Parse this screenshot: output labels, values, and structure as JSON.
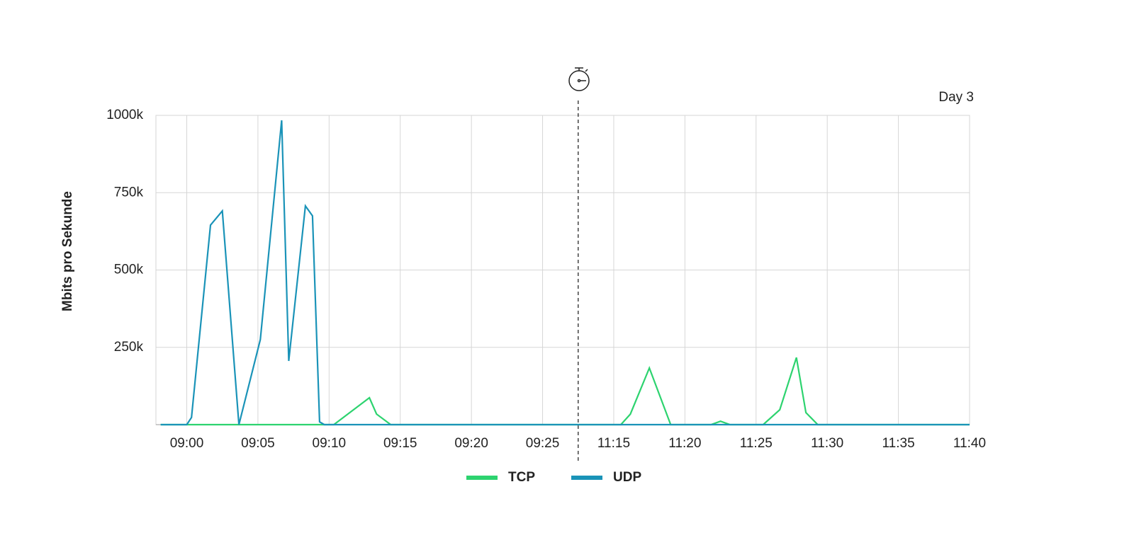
{
  "chart_data": {
    "type": "line",
    "y_label": "Mbits pro Sekunde",
    "annotation": "Day 3",
    "ylim": [
      0,
      1000000
    ],
    "yticks": [
      {
        "value": 250000,
        "label": "250k"
      },
      {
        "value": 500000,
        "label": "500k"
      },
      {
        "value": 750000,
        "label": "750k"
      },
      {
        "value": 1000000,
        "label": "1000k"
      }
    ],
    "xlim": [
      "08:57:50",
      "11:40:00"
    ],
    "x_break": [
      "09:27:30",
      "11:12:30"
    ],
    "xticks": [
      "09:00",
      "09:05",
      "09:10",
      "09:15",
      "09:20",
      "09:25",
      "11:15",
      "11:20",
      "11:25",
      "11:30",
      "11:35",
      "11:40"
    ],
    "grid": true,
    "legend": "bottom",
    "series": [
      {
        "name": "TCP",
        "color": "#2dd36f",
        "x": [
          "08:58:10",
          "09:10:20",
          "09:12:50",
          "09:13:20",
          "09:14:20",
          "11:15:30",
          "11:16:10",
          "11:17:30",
          "11:19:00",
          "11:21:50",
          "11:22:30",
          "11:23:10",
          "11:25:30",
          "11:26:40",
          "11:27:50",
          "11:28:30",
          "11:29:20",
          "11:40:00"
        ],
        "values": [
          0,
          0,
          87000,
          34000,
          0,
          0,
          34000,
          183000,
          0,
          0,
          11000,
          0,
          0,
          48000,
          217000,
          39000,
          0,
          0
        ]
      },
      {
        "name": "UDP",
        "color": "#1a93b8",
        "x": [
          "08:58:10",
          "09:00:00",
          "09:00:20",
          "09:01:40",
          "09:02:30",
          "09:03:40",
          "09:05:10",
          "09:06:40",
          "09:07:10",
          "09:08:20",
          "09:08:50",
          "09:09:20",
          "09:09:40",
          "11:40:00"
        ],
        "values": [
          0,
          0,
          23000,
          645000,
          691000,
          0,
          275000,
          984000,
          206000,
          707000,
          675000,
          9000,
          0,
          0
        ]
      }
    ]
  }
}
